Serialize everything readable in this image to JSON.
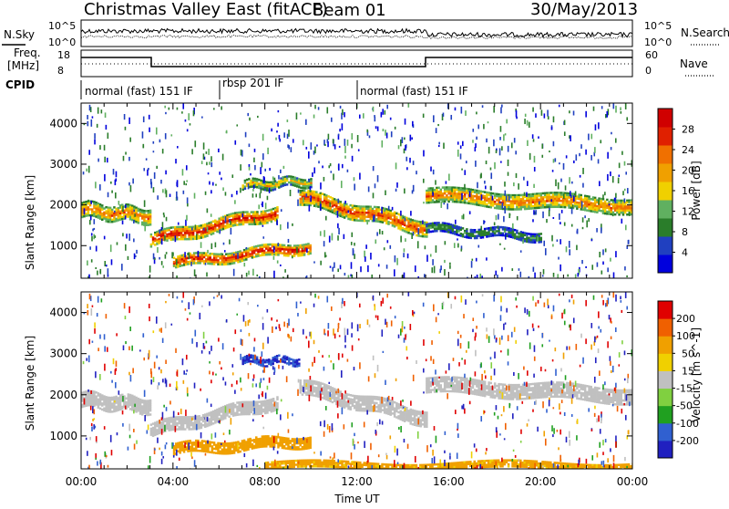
{
  "header": {
    "station": "Christmas Valley East (fitACF)",
    "beam": "Beam 01",
    "date": "30/May/2013"
  },
  "noise_panel": {
    "left_label": "N.Sky",
    "right_label": "N.Search",
    "left_ticks": [
      "10^5",
      "10^0"
    ],
    "right_ticks": [
      "10^5",
      "10^0"
    ]
  },
  "freq_panel": {
    "left_label_1": "Freq.",
    "left_label_2": "[MHz]",
    "left_ticks": [
      "18",
      "8"
    ],
    "right_label": "Nave",
    "right_ticks": [
      "60",
      "0"
    ]
  },
  "cpid_panel": {
    "label": "CPID",
    "segments": [
      {
        "label": "normal (fast) 151 IF",
        "start_h": 0,
        "end_h": 6.1
      },
      {
        "label": "rbsp 201 IF",
        "start_h": 6.1,
        "end_h": 12.1
      },
      {
        "label": "normal (fast) 151 IF",
        "start_h": 12.1,
        "end_h": 24
      }
    ]
  },
  "chart_data": [
    {
      "type": "heatmap",
      "title": "",
      "ylabel": "Slant Range [km]",
      "xlabel": "",
      "ylim": [
        200,
        4500
      ],
      "yticks": [
        "4000",
        "3000",
        "2000",
        "1000"
      ],
      "colorbar": {
        "label": "Power [dB]",
        "ticks": [
          "28",
          "24",
          "20",
          "16",
          "12",
          "8",
          "4"
        ],
        "range": [
          0,
          30
        ],
        "colors": [
          "#0000dd",
          "#2040c0",
          "#2a7d2a",
          "#60b060",
          "#f0d000",
          "#f0a000",
          "#f07000",
          "#e02000",
          "#d00000"
        ]
      },
      "features": [
        {
          "x": [
            0,
            3
          ],
          "range_center": [
            1900,
            1750
          ],
          "width": 350,
          "mean_power": 18
        },
        {
          "x": [
            3,
            8.5
          ],
          "range_center": [
            1150,
            1850
          ],
          "width": 300,
          "mean_power": 22
        },
        {
          "x": [
            4,
            10
          ],
          "range_center": [
            600,
            1000
          ],
          "width": 250,
          "mean_power": 22
        },
        {
          "x": [
            7,
            10
          ],
          "range_center": [
            2500,
            2600
          ],
          "width": 200,
          "mean_power": 14
        },
        {
          "x": [
            9.5,
            15
          ],
          "range_center": [
            2200,
            1450
          ],
          "width": 350,
          "mean_power": 20
        },
        {
          "x": [
            15,
            24
          ],
          "range_center": [
            2250,
            2000
          ],
          "width": 350,
          "mean_power": 18
        },
        {
          "x": [
            15,
            20
          ],
          "range_center": [
            1450,
            1250
          ],
          "width": 200,
          "mean_power": 8
        }
      ]
    },
    {
      "type": "heatmap",
      "title": "",
      "ylabel": "Slant Range [km]",
      "xlabel": "Time UT",
      "ylim": [
        200,
        4500
      ],
      "yticks": [
        "4000",
        "3000",
        "2000",
        "1000"
      ],
      "xticks": [
        "00:00",
        "04:00",
        "08:00",
        "12:00",
        "16:00",
        "20:00",
        "00:00"
      ],
      "colorbar": {
        "label": "Velocity [m s^-1]",
        "ticks": [
          "200",
          "100",
          "50",
          "15",
          "-15",
          "-50",
          "-100",
          "-200"
        ],
        "range": [
          -250,
          250
        ],
        "colors": [
          "#2020c0",
          "#3060d0",
          "#20a020",
          "#80d040",
          "#c0c0c0",
          "#f0d000",
          "#f0a000",
          "#f06000",
          "#e00000"
        ]
      },
      "features": [
        {
          "x": [
            0,
            3
          ],
          "range_center": [
            1900,
            1750
          ],
          "width": 350,
          "velocity": 0
        },
        {
          "x": [
            3,
            8.5
          ],
          "range_center": [
            1150,
            1850
          ],
          "width": 300,
          "velocity": 0
        },
        {
          "x": [
            4,
            10
          ],
          "range_center": [
            700,
            900
          ],
          "width": 250,
          "velocity": -60
        },
        {
          "x": [
            7,
            9.5
          ],
          "range_center": [
            2850,
            2850
          ],
          "width": 150,
          "velocity": 150
        },
        {
          "x": [
            9.5,
            15
          ],
          "range_center": [
            2200,
            1450
          ],
          "width": 350,
          "velocity": 0
        },
        {
          "x": [
            15,
            24
          ],
          "range_center": [
            2250,
            2000
          ],
          "width": 350,
          "velocity": 0
        },
        {
          "x": [
            8,
            24
          ],
          "range_center": [
            300,
            300
          ],
          "width": 150,
          "velocity": -40
        }
      ]
    }
  ]
}
